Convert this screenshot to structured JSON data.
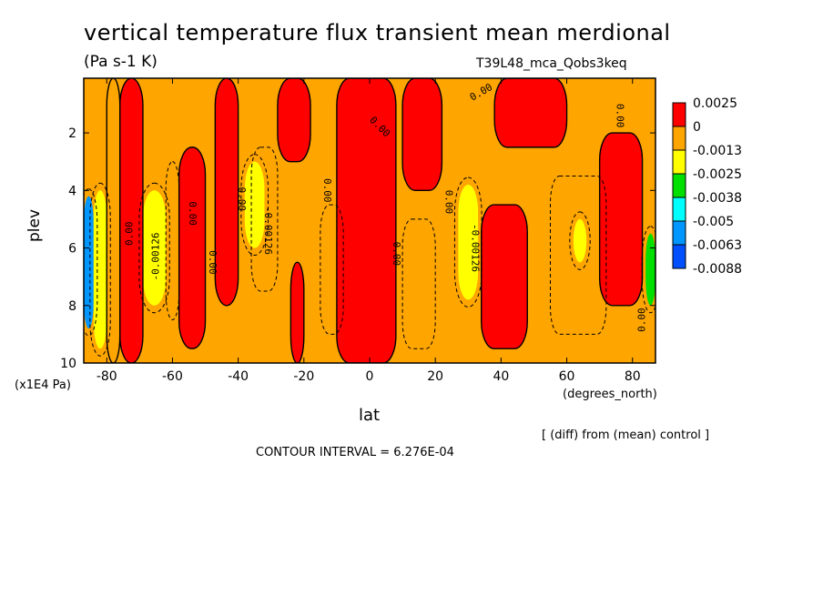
{
  "title": "vertical temperature flux transient mean merdional",
  "units": "(Pa s-1 K)",
  "run_id": "T39L48_mca_Qobs3keq",
  "note": "[ (diff) from (mean) control ]",
  "contour_interval": "CONTOUR INTERVAL = 6.276E-04",
  "colors": {
    "red": "#ff0000",
    "orange": "#ffa500",
    "yellow": "#ffff00",
    "green": "#00e000",
    "cyan": "#00ffff",
    "blue1": "#0096ff",
    "blue2": "#0050ff"
  },
  "chart_data": {
    "type": "heatmap",
    "title": "vertical temperature flux transient mean merdional",
    "xlabel": "lat",
    "xunit": "(degrees_north)",
    "ylabel": "plev",
    "yunit": "(x1E4 Pa)",
    "xlim": [
      -87,
      87
    ],
    "ylim": [
      10,
      0.1
    ],
    "x_ticks": [
      "-80",
      "-60",
      "-40",
      "-20",
      "0",
      "20",
      "40",
      "60",
      "80"
    ],
    "x_tick_values": [
      -80,
      -60,
      -40,
      -20,
      0,
      20,
      40,
      60,
      80
    ],
    "y_ticks": [
      "2",
      "4",
      "6",
      "8",
      "10"
    ],
    "y_tick_values": [
      2,
      4,
      6,
      8,
      10
    ],
    "colorbar": {
      "labels": [
        "0.0025",
        "0",
        "-0.0013",
        "-0.0025",
        "-0.0038",
        "-0.005",
        "-0.0063",
        "-0.0088"
      ],
      "colors": [
        "#ff0000",
        "#ffa500",
        "#ffff00",
        "#00e000",
        "#00ffff",
        "#0096ff",
        "#0050ff"
      ]
    },
    "bands": [
      {
        "x0": -87,
        "x1": -84,
        "class": "blue",
        "y0": 4.2,
        "y1": 8.8
      },
      {
        "x0": -84,
        "x1": -80,
        "class": "yellow",
        "y0": 4.0,
        "y1": 9.5
      },
      {
        "x0": -80,
        "x1": -76,
        "class": "orange",
        "y0": 0.1,
        "y1": 10
      },
      {
        "x0": -76,
        "x1": -69,
        "class": "red",
        "y0": 0.1,
        "y1": 10
      },
      {
        "x0": -69,
        "x1": -62,
        "class": "yellow",
        "y0": 4.0,
        "y1": 8.0
      },
      {
        "x0": -58,
        "x1": -50,
        "class": "red",
        "y0": 2.5,
        "y1": 9.5
      },
      {
        "x0": -47,
        "x1": -40,
        "class": "red",
        "y0": 0.1,
        "y1": 8.0
      },
      {
        "x0": -38,
        "x1": -32,
        "class": "yellow",
        "y0": 3.0,
        "y1": 6.0
      },
      {
        "x0": -28,
        "x1": -18,
        "class": "red",
        "y0": 0.1,
        "y1": 3.0
      },
      {
        "x0": -24,
        "x1": -20,
        "class": "red",
        "y0": 6.5,
        "y1": 10
      },
      {
        "x0": -10,
        "x1": 8,
        "class": "red",
        "y0": 0.1,
        "y1": 10
      },
      {
        "x0": 10,
        "x1": 22,
        "class": "red",
        "y0": 0.1,
        "y1": 4.0
      },
      {
        "x0": 27,
        "x1": 33,
        "class": "yellow",
        "y0": 3.8,
        "y1": 7.8
      },
      {
        "x0": 34,
        "x1": 48,
        "class": "red",
        "y0": 4.5,
        "y1": 9.5
      },
      {
        "x0": 38,
        "x1": 60,
        "class": "red",
        "y0": 0.1,
        "y1": 2.5
      },
      {
        "x0": 62,
        "x1": 66,
        "class": "yellow",
        "y0": 5.0,
        "y1": 6.5
      },
      {
        "x0": 70,
        "x1": 83,
        "class": "red",
        "y0": 2.0,
        "y1": 8.0
      },
      {
        "x0": 84,
        "x1": 87,
        "class": "green",
        "y0": 5.5,
        "y1": 8.0
      }
    ],
    "contour_labels": [
      {
        "text": "0.00",
        "x": -73,
        "y": 5.5,
        "rot": -90
      },
      {
        "text": "-0.00126",
        "x": -65,
        "y": 6.3,
        "rot": -90
      },
      {
        "text": "0.00",
        "x": -54,
        "y": 4.8,
        "rot": 90
      },
      {
        "text": "0.00",
        "x": -48,
        "y": 6.5,
        "rot": 90
      },
      {
        "text": "0.00",
        "x": -39,
        "y": 4.3,
        "rot": 90
      },
      {
        "text": "-0.00126",
        "x": -31,
        "y": 5.4,
        "rot": 90
      },
      {
        "text": "0.00",
        "x": -13,
        "y": 4.0,
        "rot": 90
      },
      {
        "text": "0.00",
        "x": 3,
        "y": 1.8,
        "rot": 45
      },
      {
        "text": "0.00",
        "x": 8,
        "y": 6.2,
        "rot": 90
      },
      {
        "text": "0.00",
        "x": 24,
        "y": 4.4,
        "rot": 90
      },
      {
        "text": "-0.00126",
        "x": 32,
        "y": 6.0,
        "rot": 90
      },
      {
        "text": "0.00",
        "x": 34,
        "y": 0.6,
        "rot": -30
      },
      {
        "text": "0.00",
        "x": 76,
        "y": 1.4,
        "rot": 90
      },
      {
        "text": "0.00",
        "x": 83,
        "y": 8.5,
        "rot": -90
      }
    ]
  }
}
